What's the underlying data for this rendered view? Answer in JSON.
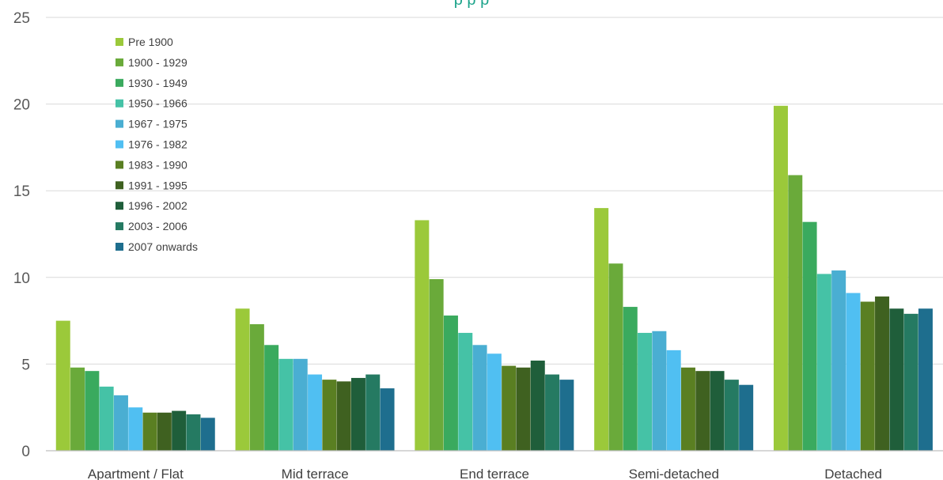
{
  "chart_data": {
    "type": "bar",
    "title": "",
    "xlabel": "",
    "ylabel": "",
    "ylim": [
      0,
      25
    ],
    "yticks": [
      0,
      5,
      10,
      15,
      20,
      25
    ],
    "grid": true,
    "legend_position": "top-left",
    "categories": [
      "Apartment / Flat",
      "Mid terrace",
      "End terrace",
      "Semi-detached",
      "Detached"
    ],
    "series": [
      {
        "name": "Pre 1900",
        "color": "#9bc93a",
        "values": [
          7.5,
          8.2,
          13.3,
          14.0,
          19.9
        ]
      },
      {
        "name": "1900 - 1929",
        "color": "#6aaa3a",
        "values": [
          4.8,
          7.3,
          9.9,
          10.8,
          15.9
        ]
      },
      {
        "name": "1930 - 1949",
        "color": "#3aaa5e",
        "values": [
          4.6,
          6.1,
          7.8,
          8.3,
          13.2
        ]
      },
      {
        "name": "1950 - 1966",
        "color": "#45c2a6",
        "values": [
          3.7,
          5.3,
          6.8,
          6.8,
          10.2
        ]
      },
      {
        "name": "1967 - 1975",
        "color": "#4aaed2",
        "values": [
          3.2,
          5.3,
          6.1,
          6.9,
          10.4
        ]
      },
      {
        "name": "1976 - 1982",
        "color": "#50bff2",
        "values": [
          2.5,
          4.4,
          5.6,
          5.8,
          9.1
        ]
      },
      {
        "name": "1983 - 1990",
        "color": "#5a7f22",
        "values": [
          2.2,
          4.1,
          4.9,
          4.8,
          8.6
        ]
      },
      {
        "name": "1991 - 1995",
        "color": "#3f6120",
        "values": [
          2.2,
          4.0,
          4.8,
          4.6,
          8.9
        ]
      },
      {
        "name": "1996 - 2002",
        "color": "#1f5e3a",
        "values": [
          2.3,
          4.2,
          5.2,
          4.6,
          8.2
        ]
      },
      {
        "name": "2003 - 2006",
        "color": "#257a62",
        "values": [
          2.1,
          4.4,
          4.4,
          4.1,
          7.9
        ]
      },
      {
        "name": "2007 onwards",
        "color": "#1e6e8e",
        "values": [
          1.9,
          3.6,
          4.1,
          3.8,
          8.2
        ]
      }
    ]
  },
  "title_fragment": "p    p    p",
  "colors": {
    "gridline": "#d9d9d9",
    "axis": "#bfbfbf",
    "title": "#1ba38a"
  }
}
